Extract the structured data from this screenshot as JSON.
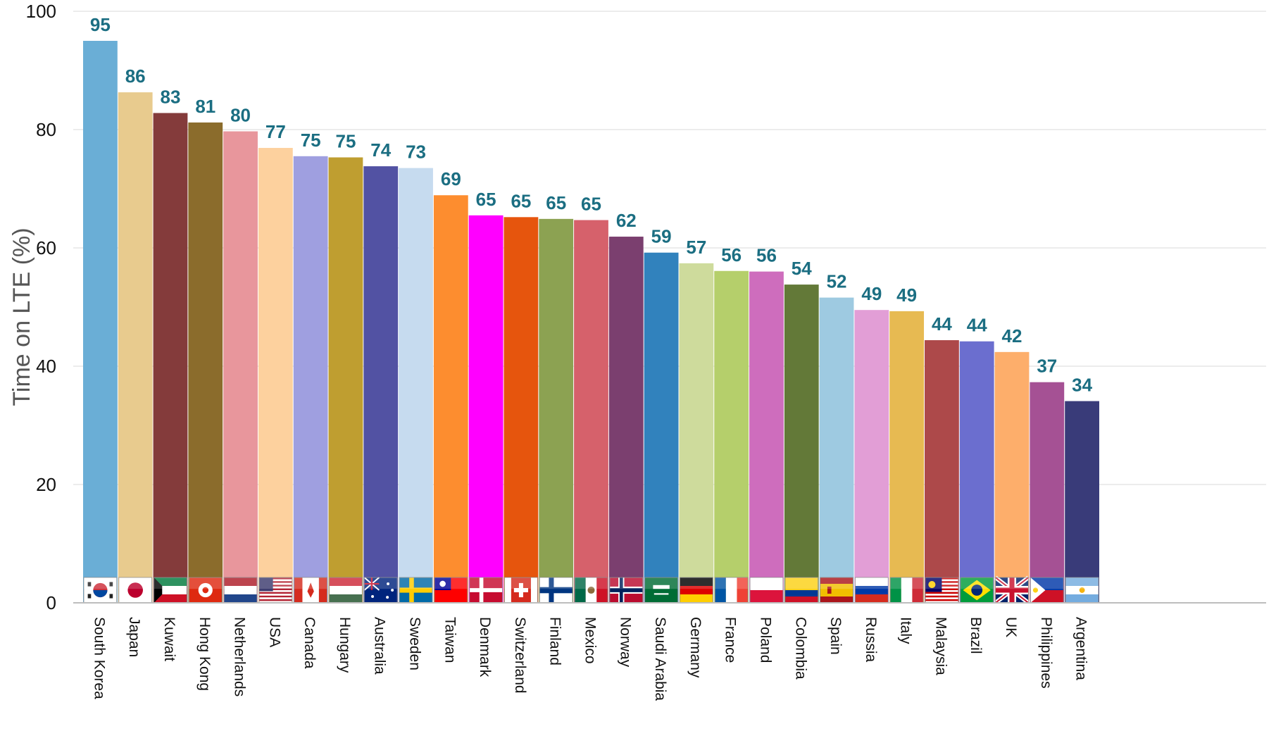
{
  "chart_data": {
    "type": "bar",
    "ylabel": "Time on LTE (%)",
    "xlabel": "",
    "ylim": [
      0,
      100
    ],
    "yticks": [
      0,
      20,
      40,
      60,
      80,
      100
    ],
    "grid": true,
    "flag_icons": true,
    "categories": [
      "South Korea",
      "Japan",
      "Kuwait",
      "Hong Kong",
      "Netherlands",
      "USA",
      "Canada",
      "Hungary",
      "Australia",
      "Sweden",
      "Taiwan",
      "Denmark",
      "Switzerland",
      "Finland",
      "Mexico",
      "Norway",
      "Saudi Arabia",
      "Germany",
      "France",
      "Poland",
      "Colombia",
      "Spain",
      "Russia",
      "Italy",
      "Malaysia",
      "Brazil",
      "UK",
      "Philippines",
      "Argentina"
    ],
    "values": [
      95,
      86,
      83,
      81,
      80,
      77,
      75,
      75,
      74,
      73,
      69,
      65,
      65,
      65,
      65,
      62,
      59,
      57,
      56,
      56,
      54,
      52,
      49,
      49,
      44,
      44,
      42,
      37,
      34
    ],
    "bar_heights_approx": [
      95.0,
      86.3,
      82.8,
      81.2,
      79.7,
      76.9,
      75.5,
      75.3,
      73.8,
      73.5,
      68.9,
      65.5,
      65.2,
      64.9,
      64.7,
      61.9,
      59.2,
      57.4,
      56.1,
      56.0,
      53.8,
      51.6,
      49.5,
      49.3,
      44.4,
      44.2,
      42.4,
      37.3,
      34.1
    ],
    "colors": [
      "#6aaed6",
      "#e8cb8e",
      "#843b3b",
      "#8b6c2c",
      "#e8969c",
      "#fdd19e",
      "#9f9fe0",
      "#bf9e30",
      "#5252a3",
      "#c6dbef",
      "#fd8d2f",
      "#ff00ff",
      "#e6550d",
      "#8ca252",
      "#d6616b",
      "#7b3f6f",
      "#3182bd",
      "#cedb9c",
      "#b5cf6b",
      "#ce6dbd",
      "#637938",
      "#9ecae1",
      "#e29ed6",
      "#e7ba52",
      "#ad494a",
      "#6b6ecf",
      "#fdae6b",
      "#a55194",
      "#393b79"
    ],
    "flags": [
      "south-korea-flag",
      "japan-flag",
      "kuwait-flag",
      "hong-kong-flag",
      "netherlands-flag",
      "usa-flag",
      "canada-flag",
      "hungary-flag",
      "australia-flag",
      "sweden-flag",
      "taiwan-flag",
      "denmark-flag",
      "switzerland-flag",
      "finland-flag",
      "mexico-flag",
      "norway-flag",
      "saudi-arabia-flag",
      "germany-flag",
      "france-flag",
      "poland-flag",
      "colombia-flag",
      "spain-flag",
      "russia-flag",
      "italy-flag",
      "malaysia-flag",
      "brazil-flag",
      "uk-flag",
      "philippines-flag",
      "argentina-flag"
    ]
  }
}
